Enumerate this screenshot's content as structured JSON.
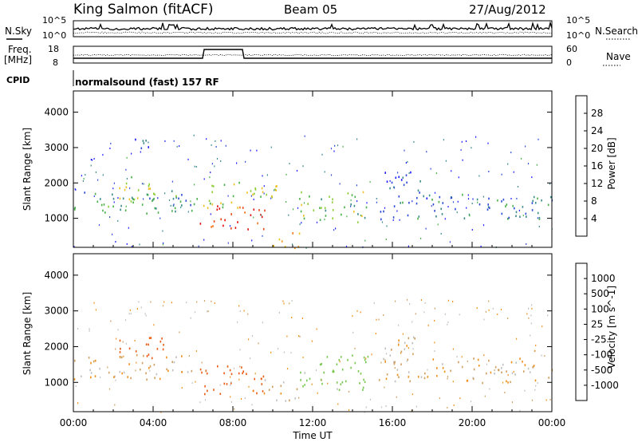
{
  "header": {
    "station": "King Salmon (fitACF)",
    "beam": "Beam 05",
    "date": "27/Aug/2012"
  },
  "noise_panel": {
    "left_label": "N.Sky",
    "right_label": "N.Search",
    "y_top": "10^5",
    "y_bottom": "10^0"
  },
  "freq_panel": {
    "left_label_1": "Freq.",
    "left_label_2": "[MHz]",
    "y_top": "18",
    "y_bottom": "8",
    "right_label": "Nave",
    "right_top": "60",
    "right_bottom": "0"
  },
  "cpid": {
    "label": "CPID",
    "value": "normalsound (fast) 157 RF"
  },
  "xaxis": {
    "title": "Time UT",
    "ticks": [
      "00:00",
      "04:00",
      "08:00",
      "12:00",
      "16:00",
      "20:00",
      "00:00"
    ]
  },
  "power_panel": {
    "ylabel": "Slant Range [km]",
    "yticks": [
      "1000",
      "2000",
      "3000",
      "4000"
    ],
    "colorbar_label": "Power [dB]",
    "colorbar_ticks": [
      "4",
      "8",
      "12",
      "16",
      "20",
      "24",
      "28"
    ]
  },
  "velocity_panel": {
    "ylabel": "Slant Range [km]",
    "yticks": [
      "1000",
      "2000",
      "3000",
      "4000"
    ],
    "colorbar_label": "Velocity [m s^-1]",
    "colorbar_ticks": [
      "1000",
      "500",
      "100",
      "25",
      "-25",
      "-100",
      "-500",
      "-1000"
    ]
  },
  "chart_data": [
    {
      "type": "heatmap",
      "title": "Power",
      "xlabel": "Time UT",
      "ylabel": "Slant Range [km]",
      "xlim": [
        "00:00",
        "24:00"
      ],
      "ylim": [
        180,
        4600
      ],
      "scale_unit": "dB",
      "scale_range": [
        0,
        30
      ],
      "colors": [
        "#1a1aff",
        "#2e4bd9",
        "#3a8a8a",
        "#48b048",
        "#8ccd36",
        "#f0c020",
        "#f59a10",
        "#f07010",
        "#ea4010",
        "#e01010"
      ],
      "regions": [
        {
          "t0": 0.0,
          "t1": 6.2,
          "r0": 1100,
          "r1": 1800,
          "power": 9
        },
        {
          "t0": 2.0,
          "t1": 4.5,
          "r0": 1500,
          "r1": 2200,
          "power": 14
        },
        {
          "t0": 6.2,
          "t1": 9.6,
          "r0": 700,
          "r1": 1400,
          "power": 26
        },
        {
          "t0": 6.5,
          "t1": 10.2,
          "r0": 1300,
          "r1": 2100,
          "power": 14
        },
        {
          "t0": 10.0,
          "t1": 11.4,
          "r0": 180,
          "r1": 700,
          "power": 20
        },
        {
          "t0": 11.3,
          "t1": 14.8,
          "r0": 900,
          "r1": 1800,
          "power": 12
        },
        {
          "t0": 15.3,
          "t1": 24.0,
          "r0": 1000,
          "r1": 1700,
          "power": 6
        },
        {
          "t0": 15.5,
          "t1": 17.5,
          "r0": 1700,
          "r1": 2400,
          "power": 6
        },
        {
          "t0": 2.5,
          "t1": 4.2,
          "r0": 3000,
          "r1": 3300,
          "power": 5
        }
      ]
    },
    {
      "type": "heatmap",
      "title": "Velocity",
      "xlabel": "Time UT",
      "ylabel": "Slant Range [km]",
      "xlim": [
        "00:00",
        "24:00"
      ],
      "ylim": [
        180,
        4600
      ],
      "scale_unit": "m s^-1",
      "scale_range": [
        -1000,
        1000
      ],
      "colors": [
        "#e00000",
        "#ea5a10",
        "#f09018",
        "#d0a060",
        "#c0c0c0",
        "#78c850",
        "#2e8a5a",
        "#3a4ab0"
      ],
      "regions": [
        {
          "t0": 0.0,
          "t1": 6.2,
          "r0": 1100,
          "r1": 1800,
          "velocity": 0
        },
        {
          "t0": 2.0,
          "t1": 4.5,
          "r0": 1700,
          "r1": 2300,
          "velocity": -300
        },
        {
          "t0": 6.2,
          "t1": 9.6,
          "r0": 700,
          "r1": 1500,
          "velocity": -300
        },
        {
          "t0": 9.5,
          "t1": 11.3,
          "r0": 500,
          "r1": 1100,
          "velocity": 0
        },
        {
          "t0": 11.3,
          "t1": 15.0,
          "r0": 800,
          "r1": 1800,
          "velocity": 150
        },
        {
          "t0": 15.3,
          "t1": 24.0,
          "r0": 1000,
          "r1": 1700,
          "velocity": 0
        },
        {
          "t0": 15.5,
          "t1": 17.5,
          "r0": 1600,
          "r1": 2300,
          "velocity": 0
        }
      ]
    }
  ]
}
